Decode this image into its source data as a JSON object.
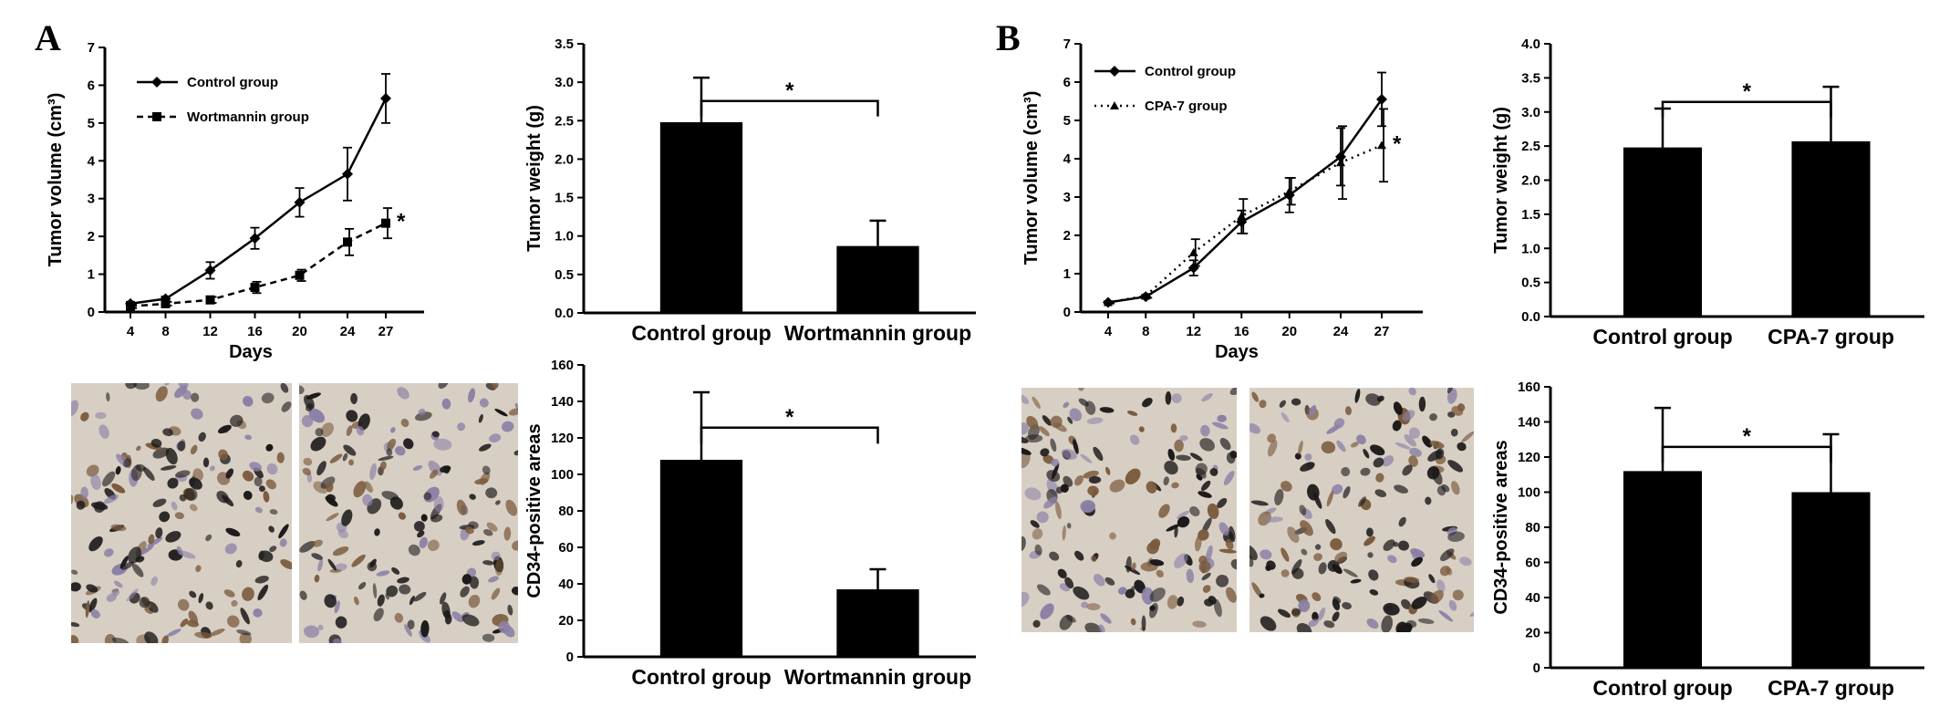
{
  "figure": {
    "panel_a_label": "A",
    "panel_b_label": "B"
  },
  "colors": {
    "bar": "#000000",
    "line": "#000000",
    "micro_bg": "#d8cfc4",
    "micro_nucleus_dark": "#1a1818",
    "micro_nucleus_purple": "#8a80a6",
    "micro_nucleus_brown": "#7a5a3c"
  },
  "chart_data": [
    {
      "id": "A-volume",
      "type": "line",
      "title": "",
      "xlabel": "Days",
      "ylabel": "Tumor volume (cm³)",
      "x": [
        4,
        8,
        12,
        16,
        20,
        24,
        27
      ],
      "x_ticks": [
        "4",
        "8",
        "12",
        "16",
        "20",
        "24",
        "27"
      ],
      "ylim": [
        0,
        7
      ],
      "y_ticks": [
        "0",
        "1",
        "2",
        "3",
        "4",
        "5",
        "6",
        "7"
      ],
      "legend_position": "top-left",
      "series": [
        {
          "name": "Control group",
          "style": "solid",
          "marker": "diamond",
          "values": [
            0.22,
            0.35,
            1.1,
            1.95,
            2.9,
            3.65,
            5.65
          ],
          "errors": [
            0.05,
            0.06,
            0.22,
            0.28,
            0.38,
            0.7,
            0.65
          ]
        },
        {
          "name": "Wortmannin group",
          "style": "dashed",
          "marker": "square",
          "values": [
            0.15,
            0.22,
            0.32,
            0.65,
            0.97,
            1.85,
            2.35
          ],
          "errors": [
            0.05,
            0.05,
            0.08,
            0.15,
            0.15,
            0.35,
            0.4
          ]
        }
      ],
      "annotations": [
        {
          "text": "*",
          "series": 1,
          "point": 6
        }
      ]
    },
    {
      "id": "A-weight",
      "type": "bar",
      "title": "",
      "xlabel": "",
      "ylabel": "Tumor weight (g)",
      "categories": [
        "Control group",
        "Wortmannin group"
      ],
      "values": [
        2.48,
        0.87
      ],
      "errors": [
        0.58,
        0.33
      ],
      "ylim": [
        0,
        3.5
      ],
      "y_ticks": [
        "0.0",
        "0.5",
        "1.0",
        "1.5",
        "2.0",
        "2.5",
        "3.0",
        "3.5"
      ],
      "significance": "*"
    },
    {
      "id": "A-cd34",
      "type": "bar",
      "title": "",
      "xlabel": "",
      "ylabel": "CD34-positive areas",
      "categories": [
        "Control group",
        "Wortmannin group"
      ],
      "values": [
        108,
        37
      ],
      "errors": [
        37,
        11
      ],
      "ylim": [
        0,
        160
      ],
      "y_ticks": [
        "0",
        "20",
        "40",
        "60",
        "80",
        "100",
        "120",
        "140",
        "160"
      ],
      "significance": "*"
    },
    {
      "id": "B-volume",
      "type": "line",
      "title": "",
      "xlabel": "Days",
      "ylabel": "Tumor volume (cm³)",
      "x": [
        4,
        8,
        12,
        16,
        20,
        24,
        27
      ],
      "x_ticks": [
        "4",
        "8",
        "12",
        "16",
        "20",
        "24",
        "27"
      ],
      "ylim": [
        0,
        7
      ],
      "y_ticks": [
        "0",
        "1",
        "2",
        "3",
        "4",
        "5",
        "6",
        "7"
      ],
      "legend_position": "top-left",
      "series": [
        {
          "name": "Control group",
          "style": "solid",
          "marker": "diamond",
          "values": [
            0.25,
            0.4,
            1.15,
            2.35,
            3.05,
            4.05,
            5.55
          ],
          "errors": [
            0.03,
            0.05,
            0.2,
            0.3,
            0.45,
            0.75,
            0.7
          ]
        },
        {
          "name": "CPA-7 group",
          "style": "dotted",
          "marker": "triangle",
          "values": [
            0.25,
            0.42,
            1.55,
            2.5,
            3.15,
            3.9,
            4.35
          ],
          "errors": [
            0.03,
            0.05,
            0.35,
            0.45,
            0.35,
            0.95,
            0.95
          ]
        }
      ],
      "annotations": [
        {
          "text": "*",
          "series": 1,
          "point": 6
        }
      ]
    },
    {
      "id": "B-weight",
      "type": "bar",
      "title": "",
      "xlabel": "",
      "ylabel": "Tumor weight (g)",
      "categories": [
        "Control group",
        "CPA-7 group"
      ],
      "values": [
        2.48,
        2.57
      ],
      "errors": [
        0.57,
        0.8
      ],
      "ylim": [
        0,
        4
      ],
      "y_ticks": [
        "0.0",
        "0.5",
        "1.0",
        "1.5",
        "2.0",
        "2.5",
        "3.0",
        "3.5",
        "4.0"
      ],
      "significance": "*"
    },
    {
      "id": "B-cd34",
      "type": "bar",
      "title": "",
      "xlabel": "",
      "ylabel": "CD34-positive areas",
      "categories": [
        "Control group",
        "CPA-7 group"
      ],
      "values": [
        112,
        100
      ],
      "errors": [
        36,
        33
      ],
      "ylim": [
        0,
        160
      ],
      "y_ticks": [
        "0",
        "20",
        "40",
        "60",
        "80",
        "100",
        "120",
        "140",
        "160"
      ],
      "significance": "*"
    }
  ]
}
